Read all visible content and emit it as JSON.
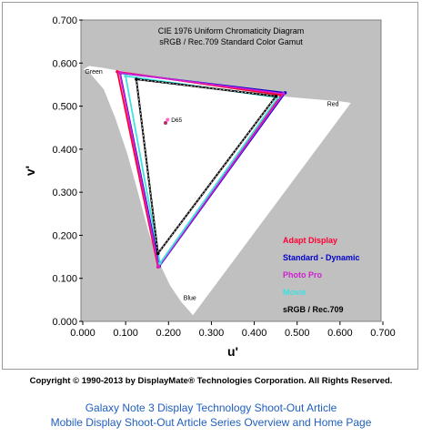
{
  "chart_data": {
    "type": "scatter",
    "title": "CIE 1976 Uniform Chromaticity Diagram",
    "subtitle": "sRGB / Rec.709 Standard Color Gamut",
    "xlabel": "u'",
    "ylabel": "v'",
    "xlim": [
      0,
      0.7
    ],
    "ylim": [
      0,
      0.7
    ],
    "x_ticks": [
      "0.000",
      "0.100",
      "0.200",
      "0.300",
      "0.400",
      "0.500",
      "0.600",
      "0.700"
    ],
    "y_ticks": [
      "0.000",
      "0.100",
      "0.200",
      "0.300",
      "0.400",
      "0.500",
      "0.600",
      "0.700"
    ],
    "grid": false,
    "plot_background": "#c0c0c0",
    "locus": [
      [
        0.2569,
        0.0164
      ],
      [
        0.23,
        0.047
      ],
      [
        0.205,
        0.084
      ],
      [
        0.178,
        0.14
      ],
      [
        0.154,
        0.21
      ],
      [
        0.13,
        0.3
      ],
      [
        0.105,
        0.39
      ],
      [
        0.078,
        0.47
      ],
      [
        0.05,
        0.54
      ],
      [
        0.02,
        0.575
      ],
      [
        0.004,
        0.586
      ],
      [
        0.015,
        0.592
      ],
      [
        0.045,
        0.588
      ],
      [
        0.08,
        0.582
      ],
      [
        0.12,
        0.575
      ],
      [
        0.17,
        0.565
      ],
      [
        0.24,
        0.554
      ],
      [
        0.32,
        0.542
      ],
      [
        0.4,
        0.53
      ],
      [
        0.48,
        0.52
      ],
      [
        0.55,
        0.514
      ],
      [
        0.6,
        0.51
      ],
      [
        0.623,
        0.5065
      ]
    ],
    "locus_labels": [
      {
        "text": "Green",
        "u": 0.005,
        "v": 0.575
      },
      {
        "text": "Red",
        "u": 0.57,
        "v": 0.5
      },
      {
        "text": "Blue",
        "u": 0.235,
        "v": 0.05
      }
    ],
    "series": [
      {
        "name": "Adapt Display",
        "color": "#ff0033",
        "points": [
          [
            0.0805,
            0.58
          ],
          [
            0.462,
            0.526
          ],
          [
            0.1755,
            0.1265
          ]
        ]
      },
      {
        "name": "Standard - Dynamic",
        "color": "#0000cc",
        "points": [
          [
            0.087,
            0.577
          ],
          [
            0.472,
            0.531
          ],
          [
            0.1785,
            0.128
          ]
        ]
      },
      {
        "name": "Photo Pro",
        "color": "#d020d0",
        "points": [
          [
            0.086,
            0.578
          ],
          [
            0.468,
            0.529
          ],
          [
            0.177,
            0.127
          ]
        ]
      },
      {
        "name": "Movie",
        "color": "#40e0e0",
        "points": [
          [
            0.1,
            0.57
          ],
          [
            0.455,
            0.52
          ],
          [
            0.18,
            0.135
          ]
        ]
      },
      {
        "name": "sRGB / Rec.709",
        "color": "#000000",
        "points": [
          [
            0.125,
            0.5625
          ],
          [
            0.4507,
            0.5229
          ],
          [
            0.1754,
            0.1579
          ]
        ]
      }
    ],
    "white_points": [
      {
        "label": "D65",
        "u": 0.1978,
        "v": 0.4683,
        "color": "#ff66cc"
      },
      {
        "label": "",
        "u": 0.193,
        "v": 0.461,
        "color": "#b03060"
      }
    ],
    "legend_placement": "bottom-right"
  },
  "footer": {
    "copyright": "Copyright © 1990-2013 by DisplayMate® Technologies Corporation. All Rights Reserved.",
    "link1": "Galaxy Note 3 Display Technology Shoot-Out Article",
    "link2": "Mobile Display Shoot-Out Article Series Overview and Home Page"
  }
}
